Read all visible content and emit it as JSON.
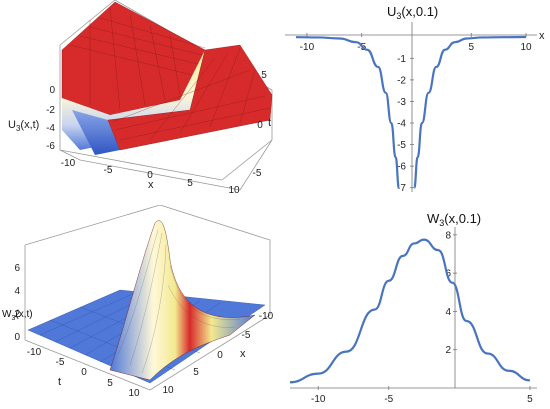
{
  "chart_data": [
    {
      "type": "surface",
      "zlabel_base": "U",
      "zlabel_sub": "3",
      "zlabel_arg": "(x,t)",
      "xlabel": "x",
      "ylabel": "t",
      "x_ticks": [
        "-10",
        "-5",
        "0",
        "5",
        "10"
      ],
      "t_ticks": [
        "5",
        "0",
        "-5"
      ],
      "z_ticks": [
        "0",
        "-2",
        "-4",
        "-6"
      ],
      "xlim": [
        -12,
        10
      ],
      "tlim": [
        -7,
        7
      ],
      "zlim": [
        -7,
        0.5
      ],
      "colors": [
        "#d82a2a",
        "#f3e98f",
        "#ffffff",
        "#4f78d8"
      ]
    },
    {
      "type": "line",
      "title_base": "U",
      "title_sub": "3",
      "title_arg": "(x,0.1)",
      "xlabel": "x",
      "x_ticks": [
        "-10",
        "-5",
        "5",
        "10"
      ],
      "y_ticks": [
        "-1",
        "-2",
        "-3",
        "-4",
        "-5",
        "-6",
        "-7"
      ],
      "xlim": [
        -12,
        11
      ],
      "ylim": [
        -7.2,
        0.5
      ],
      "color": "#4a74c0",
      "series": [
        {
          "x": [
            -11,
            -9,
            -7,
            -5.5,
            -4.5,
            -3.5,
            -2.8,
            -2.3,
            -1.9,
            -1.6
          ],
          "y": [
            -0.02,
            -0.03,
            -0.08,
            -0.25,
            -0.6,
            -1.4,
            -2.6,
            -4.0,
            -5.6,
            -7.0
          ]
        },
        {
          "x": [
            -0.2,
            0.1,
            0.5,
            1.1,
            1.8,
            2.6,
            3.5,
            4.6,
            6,
            8,
            10
          ],
          "y": [
            -7.0,
            -5.6,
            -4.0,
            -2.6,
            -1.4,
            -0.6,
            -0.25,
            -0.08,
            -0.03,
            -0.02,
            -0.01
          ]
        }
      ]
    },
    {
      "type": "surface",
      "zlabel_base": "W",
      "zlabel_sub": "3",
      "zlabel_arg": "(x,t)",
      "xlabel": "t",
      "ylabel": "x",
      "t_ticks": [
        "-10",
        "-5",
        "0",
        "5",
        "10"
      ],
      "x_ticks": [
        "-10",
        "-5",
        "0",
        "5",
        "10"
      ],
      "z_ticks": [
        "0",
        "2",
        "4",
        "6"
      ],
      "zlim": [
        0,
        8
      ],
      "colors": [
        "#4f78d8",
        "#ffffff",
        "#f3e98f",
        "#d82a2a"
      ]
    },
    {
      "type": "line",
      "title_base": "W",
      "title_sub": "3",
      "title_arg": "(x,0.1)",
      "x_ticks": [
        "-10",
        "-5",
        "5"
      ],
      "y_ticks": [
        "2",
        "4",
        "6",
        "8"
      ],
      "xlim": [
        -12,
        5.5
      ],
      "ylim": [
        0,
        8.2
      ],
      "color": "#4a74c0",
      "series": [
        {
          "x": [
            -12,
            -10,
            -8,
            -6,
            -5,
            -4,
            -3.2,
            -2.5,
            -1.5,
            -0.5,
            0.5,
            2,
            3.5,
            5
          ],
          "y": [
            0.3,
            0.75,
            1.9,
            4.1,
            5.6,
            6.9,
            7.55,
            7.75,
            7.2,
            5.5,
            3.5,
            1.8,
            0.9,
            0.4
          ]
        }
      ]
    }
  ]
}
